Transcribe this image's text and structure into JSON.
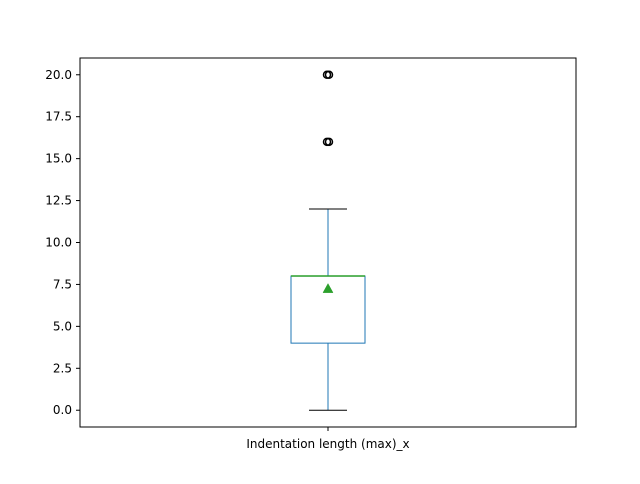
{
  "chart_data": {
    "type": "box",
    "categories": [
      "Indentation length (max)_x"
    ],
    "boxes": [
      {
        "label": "Indentation length (max)_x",
        "whisker_low": 0,
        "q1": 4,
        "median": 8,
        "q3": 8,
        "whisker_high": 12,
        "mean": 7.25,
        "outliers": [
          16,
          20
        ]
      }
    ],
    "ylim": [
      -1,
      21
    ],
    "yticks": [
      "0.0",
      "2.5",
      "5.0",
      "7.5",
      "10.0",
      "12.5",
      "15.0",
      "17.5",
      "20.0"
    ],
    "ytick_values": [
      0,
      2.5,
      5,
      7.5,
      10,
      12.5,
      15,
      17.5,
      20
    ],
    "xlabel": "",
    "ylabel": "",
    "title": "",
    "grid": false,
    "colors": {
      "box": "#1f77b4",
      "median": "#2ca02c",
      "mean_marker": "#2ca02c",
      "whisker_cap": "#000000",
      "outlier": "#000000",
      "axes": "#000000"
    }
  }
}
